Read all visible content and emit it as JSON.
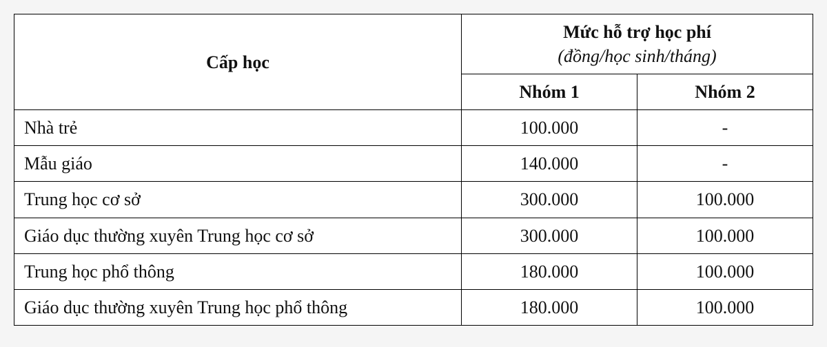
{
  "table": {
    "type": "table",
    "background_color": "#ffffff",
    "border_color": "#000000",
    "border_width": 1.5,
    "font_family": "Times New Roman",
    "header_fontsize": 26,
    "cell_fontsize": 26,
    "text_color": "#111111",
    "columns": {
      "level": {
        "label": "Cấp học",
        "width_pct": 56,
        "align": "left"
      },
      "support_header": {
        "title_bold": "Mức hỗ trợ học phí",
        "subtitle_italic": "(đồng/học sinh/tháng)"
      },
      "group1": {
        "label": "Nhóm 1",
        "width_pct": 22,
        "align": "center"
      },
      "group2": {
        "label": "Nhóm 2",
        "width_pct": 22,
        "align": "center"
      }
    },
    "rows": [
      {
        "level": "Nhà trẻ",
        "group1": "100.000",
        "group2": "-"
      },
      {
        "level": "Mẫu giáo",
        "group1": "140.000",
        "group2": "-"
      },
      {
        "level": "Trung học cơ sở",
        "group1": "300.000",
        "group2": "100.000"
      },
      {
        "level": "Giáo dục thường xuyên Trung học cơ sở",
        "group1": "300.000",
        "group2": "100.000"
      },
      {
        "level": "Trung học phổ thông",
        "group1": "180.000",
        "group2": "100.000"
      },
      {
        "level": "Giáo dục thường xuyên Trung học phổ thông",
        "group1": "180.000",
        "group2": "100.000"
      }
    ]
  }
}
